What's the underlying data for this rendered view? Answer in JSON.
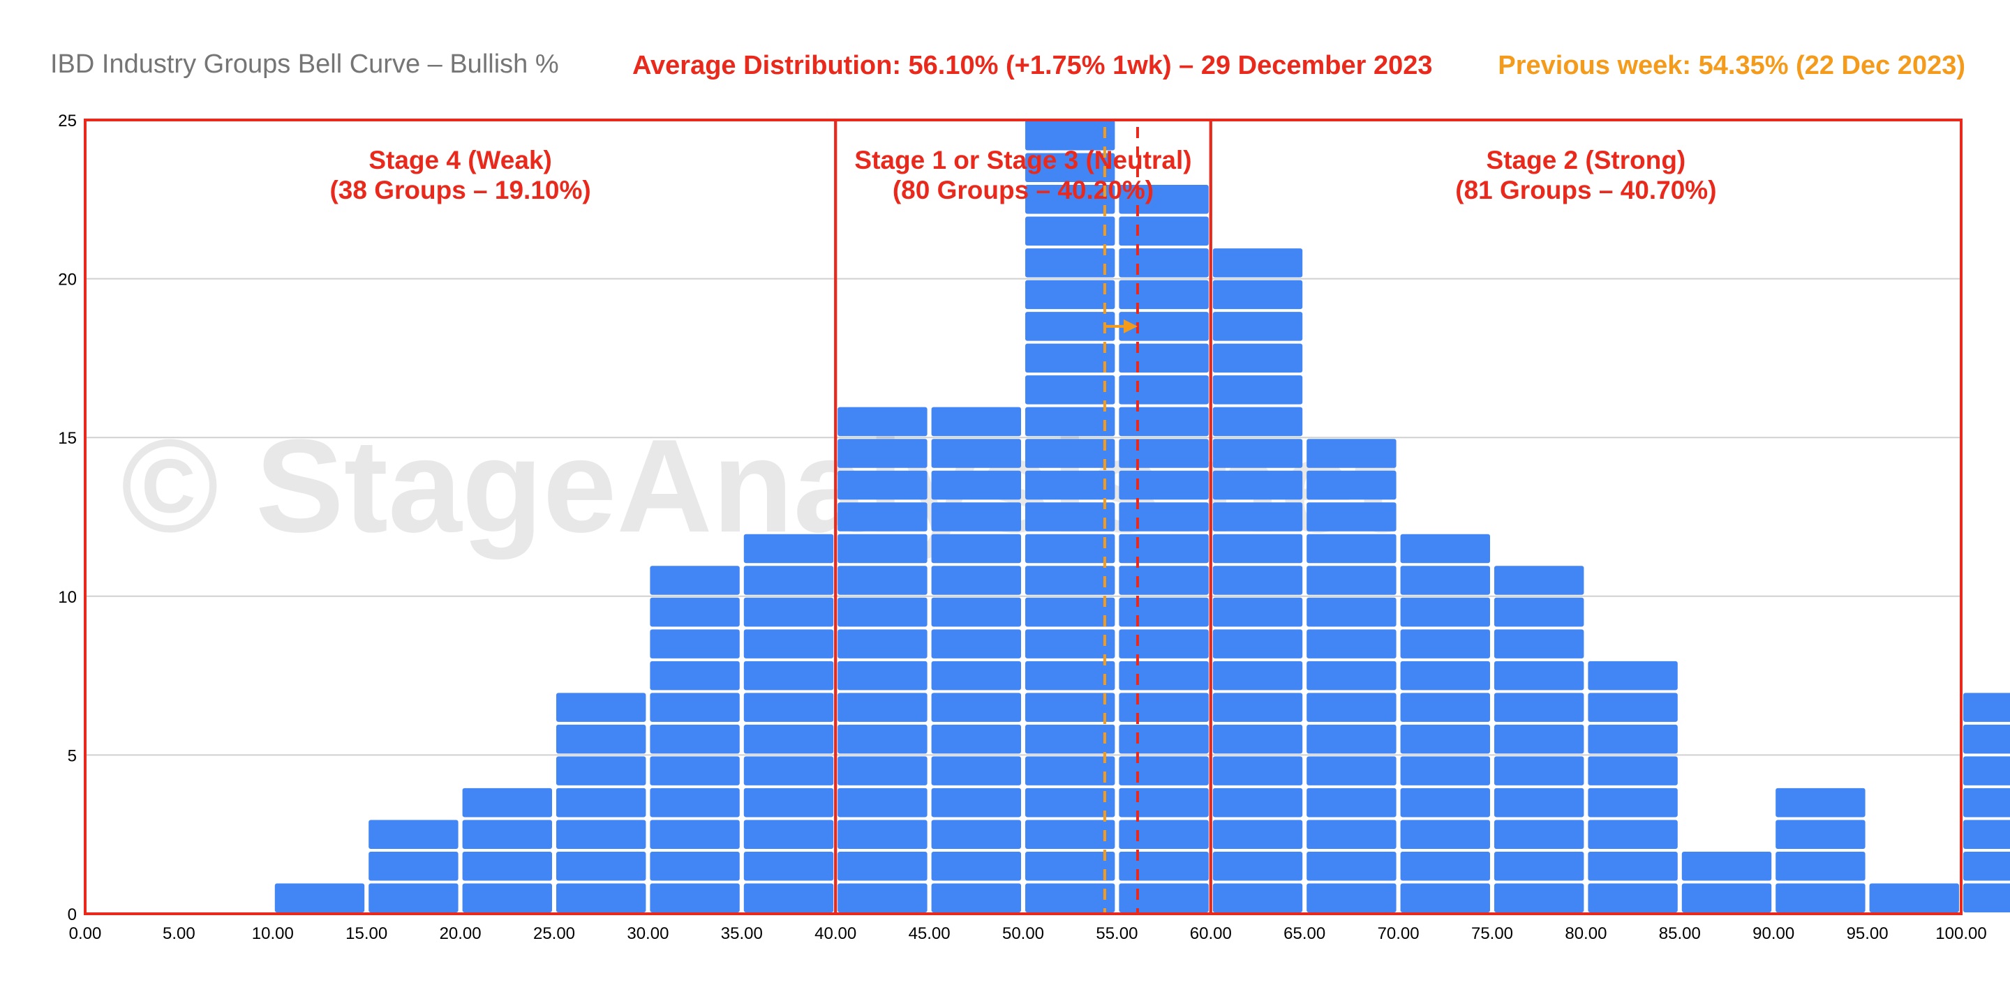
{
  "header": {
    "title": "IBD Industry Groups Bell Curve – Bullish %",
    "average": "Average Distribution: 56.10% (+1.75% 1wk) – 29 December 2023",
    "previous": "Previous week: 54.35% (22 Dec 2023)"
  },
  "watermark": "© StageAnalysis.net",
  "colors": {
    "bar": "#4285f4",
    "zone_border": "#e8291c",
    "current_line": "#e8291c",
    "previous_line": "#f49b1c",
    "grid": "#d0d0d0",
    "title": "#757575"
  },
  "chart_data": {
    "type": "bar",
    "title": "IBD Industry Groups Bell Curve – Bullish %",
    "xlabel": "",
    "ylabel": "",
    "x_ticks": [
      "0.00",
      "5.00",
      "10.00",
      "15.00",
      "20.00",
      "25.00",
      "30.00",
      "35.00",
      "40.00",
      "45.00",
      "50.00",
      "55.00",
      "60.00",
      "65.00",
      "70.00",
      "75.00",
      "80.00",
      "85.00",
      "90.00",
      "95.00",
      "100.00"
    ],
    "y_ticks": [
      0,
      5,
      10,
      15,
      20,
      25
    ],
    "xlim": [
      0,
      100
    ],
    "ylim": [
      0,
      25
    ],
    "bin_width": 5,
    "bins": [
      {
        "start": 0,
        "end": 5,
        "count": 0
      },
      {
        "start": 5,
        "end": 10,
        "count": 0
      },
      {
        "start": 10,
        "end": 15,
        "count": 1
      },
      {
        "start": 15,
        "end": 20,
        "count": 3
      },
      {
        "start": 20,
        "end": 25,
        "count": 4
      },
      {
        "start": 25,
        "end": 30,
        "count": 7
      },
      {
        "start": 30,
        "end": 35,
        "count": 11
      },
      {
        "start": 35,
        "end": 40,
        "count": 12
      },
      {
        "start": 40,
        "end": 45,
        "count": 16
      },
      {
        "start": 45,
        "end": 50,
        "count": 16
      },
      {
        "start": 50,
        "end": 55,
        "count": 25
      },
      {
        "start": 55,
        "end": 60,
        "count": 23
      },
      {
        "start": 60,
        "end": 65,
        "count": 21
      },
      {
        "start": 65,
        "end": 70,
        "count": 15
      },
      {
        "start": 70,
        "end": 75,
        "count": 12
      },
      {
        "start": 75,
        "end": 80,
        "count": 11
      },
      {
        "start": 80,
        "end": 85,
        "count": 8
      },
      {
        "start": 85,
        "end": 90,
        "count": 2
      },
      {
        "start": 90,
        "end": 95,
        "count": 4
      },
      {
        "start": 95,
        "end": 100,
        "count": 1
      },
      {
        "start": 100,
        "end": 105,
        "count": 7
      }
    ],
    "zones": [
      {
        "start": 0,
        "end": 40,
        "line1": "Stage 4 (Weak)",
        "line2": "(38 Groups – 19.10%)"
      },
      {
        "start": 40,
        "end": 60,
        "line1": "Stage 1 or Stage 3 (Neutral)",
        "line2": "(80 Groups – 40.20%)"
      },
      {
        "start": 60,
        "end": 105,
        "line1": "Stage 2 (Strong)",
        "line2": "(81 Groups – 40.70%)"
      }
    ],
    "average_lines": [
      {
        "label": "current",
        "value": 56.1
      },
      {
        "label": "previous",
        "value": 54.35
      }
    ],
    "grid": true
  }
}
